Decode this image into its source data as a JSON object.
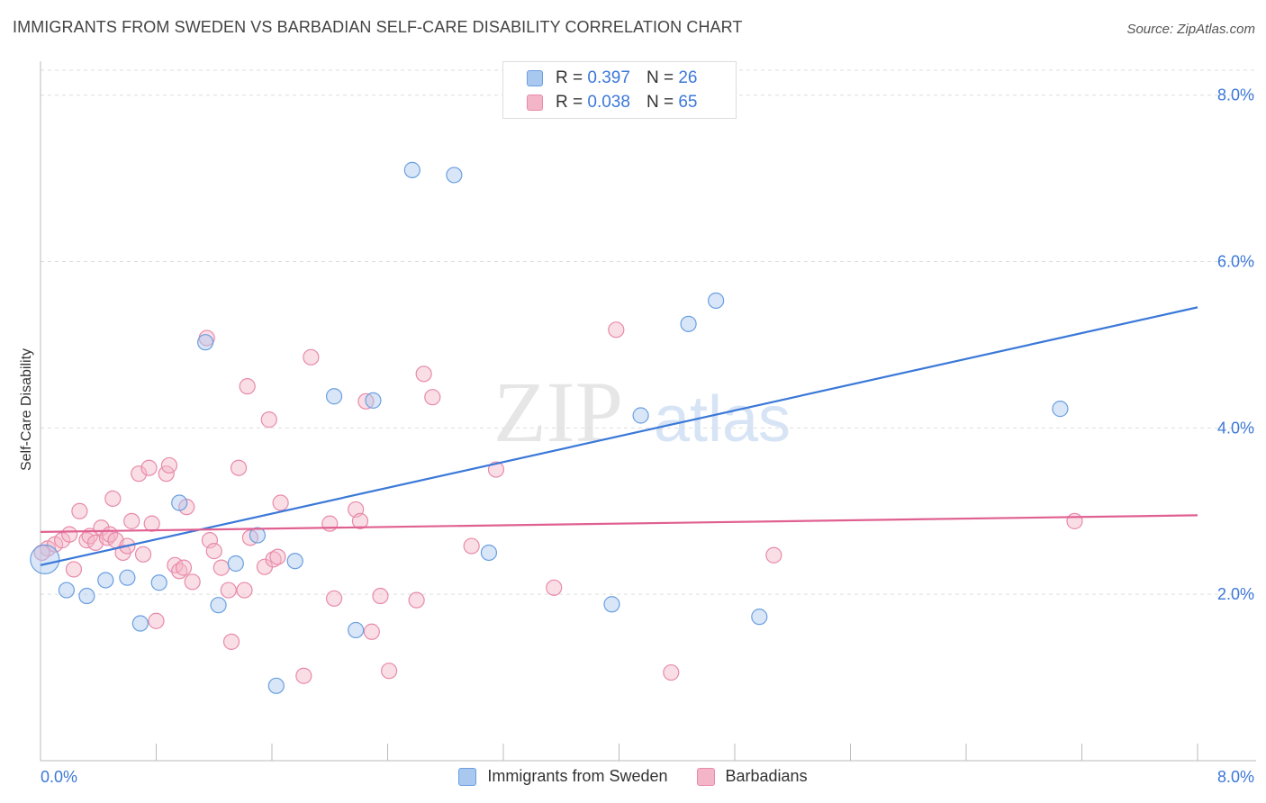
{
  "header": {
    "title": "IMMIGRANTS FROM SWEDEN VS BARBADIAN SELF-CARE DISABILITY CORRELATION CHART",
    "source": "Source: ZipAtlas.com"
  },
  "watermark": {
    "zip": "ZIP",
    "atlas": "atlas"
  },
  "legend_top": {
    "rows": [
      {
        "r_label": "R =",
        "r_value": "0.397",
        "n_label": "N =",
        "n_value": "26"
      },
      {
        "r_label": "R =",
        "r_value": "0.038",
        "n_label": "N =",
        "n_value": "65"
      }
    ]
  },
  "legend_bottom": {
    "items": [
      {
        "label": "Immigrants from Sweden"
      },
      {
        "label": "Barbadians"
      }
    ]
  },
  "colors": {
    "sweden_fill": "#a8c8f0",
    "sweden_stroke": "#6a9fe0",
    "sweden_line": "#3a78d8",
    "barbadian_fill": "#f5b5c8",
    "barbadian_stroke": "#e88aaa",
    "barbadian_line": "#e06090",
    "tick_label": "#3c78d8",
    "grid": "#dddddd"
  },
  "chart_data": {
    "type": "scatter",
    "title": "IMMIGRANTS FROM SWEDEN VS BARBADIAN SELF-CARE DISABILITY CORRELATION CHART",
    "xlabel": "",
    "ylabel": "Self-Care Disability",
    "xlim": [
      0,
      8
    ],
    "ylim": [
      0,
      8.3
    ],
    "x_tick_labels": [
      "0.0%",
      "8.0%"
    ],
    "y_ticks": [
      2,
      4,
      6,
      8
    ],
    "y_tick_labels": [
      "2.0%",
      "4.0%",
      "6.0%",
      "8.0%"
    ],
    "grid": true,
    "legend_placement": "bottom",
    "series": [
      {
        "name": "Immigrants from Sweden",
        "r": 0.397,
        "n": 26,
        "trend": [
          [
            0,
            2.35
          ],
          [
            8,
            5.45
          ]
        ],
        "points": [
          [
            0.03,
            2.42
          ],
          [
            0.18,
            2.05
          ],
          [
            0.32,
            1.98
          ],
          [
            0.45,
            2.17
          ],
          [
            0.6,
            2.2
          ],
          [
            0.69,
            1.65
          ],
          [
            0.82,
            2.14
          ],
          [
            0.96,
            3.1
          ],
          [
            1.14,
            5.03
          ],
          [
            1.23,
            1.87
          ],
          [
            1.35,
            2.37
          ],
          [
            1.5,
            2.71
          ],
          [
            1.63,
            0.9
          ],
          [
            1.76,
            2.4
          ],
          [
            2.03,
            4.38
          ],
          [
            2.18,
            1.57
          ],
          [
            2.3,
            4.33
          ],
          [
            2.57,
            7.1
          ],
          [
            2.86,
            7.04
          ],
          [
            3.1,
            2.5
          ],
          [
            3.95,
            1.88
          ],
          [
            4.15,
            4.15
          ],
          [
            4.48,
            5.25
          ],
          [
            4.67,
            5.53
          ],
          [
            4.97,
            1.73
          ],
          [
            7.05,
            4.23
          ]
        ]
      },
      {
        "name": "Barbadians",
        "r": 0.038,
        "n": 65,
        "trend": [
          [
            0,
            2.75
          ],
          [
            8,
            2.95
          ]
        ],
        "points": [
          [
            0.05,
            2.55
          ],
          [
            0.1,
            2.6
          ],
          [
            0.15,
            2.65
          ],
          [
            0.2,
            2.72
          ],
          [
            0.23,
            2.3
          ],
          [
            0.27,
            3.0
          ],
          [
            0.32,
            2.65
          ],
          [
            0.34,
            2.7
          ],
          [
            0.38,
            2.62
          ],
          [
            0.42,
            2.8
          ],
          [
            0.46,
            2.68
          ],
          [
            0.48,
            2.72
          ],
          [
            0.5,
            3.15
          ],
          [
            0.52,
            2.65
          ],
          [
            0.57,
            2.5
          ],
          [
            0.6,
            2.58
          ],
          [
            0.63,
            2.88
          ],
          [
            0.68,
            3.45
          ],
          [
            0.71,
            2.48
          ],
          [
            0.75,
            3.52
          ],
          [
            0.77,
            2.85
          ],
          [
            0.8,
            1.68
          ],
          [
            0.87,
            3.45
          ],
          [
            0.89,
            3.55
          ],
          [
            0.93,
            2.35
          ],
          [
            0.96,
            2.28
          ],
          [
            0.99,
            2.32
          ],
          [
            1.01,
            3.05
          ],
          [
            1.05,
            2.15
          ],
          [
            1.15,
            5.08
          ],
          [
            1.17,
            2.65
          ],
          [
            1.2,
            2.52
          ],
          [
            1.25,
            2.32
          ],
          [
            1.3,
            2.05
          ],
          [
            1.32,
            1.43
          ],
          [
            1.37,
            3.52
          ],
          [
            1.41,
            2.05
          ],
          [
            1.43,
            4.5
          ],
          [
            1.45,
            2.68
          ],
          [
            1.55,
            2.33
          ],
          [
            1.58,
            4.1
          ],
          [
            1.61,
            2.42
          ],
          [
            1.64,
            2.45
          ],
          [
            1.66,
            3.1
          ],
          [
            1.82,
            1.02
          ],
          [
            1.87,
            4.85
          ],
          [
            2.0,
            2.85
          ],
          [
            2.03,
            1.95
          ],
          [
            2.18,
            3.02
          ],
          [
            2.21,
            2.88
          ],
          [
            2.25,
            4.32
          ],
          [
            2.29,
            1.55
          ],
          [
            2.35,
            1.98
          ],
          [
            2.41,
            1.08
          ],
          [
            2.6,
            1.93
          ],
          [
            2.65,
            4.65
          ],
          [
            2.71,
            4.37
          ],
          [
            2.98,
            2.58
          ],
          [
            3.15,
            3.5
          ],
          [
            3.55,
            2.08
          ],
          [
            3.98,
            5.18
          ],
          [
            4.36,
            1.06
          ],
          [
            5.07,
            2.47
          ],
          [
            7.15,
            2.88
          ],
          [
            0.01,
            2.5
          ]
        ]
      }
    ]
  }
}
